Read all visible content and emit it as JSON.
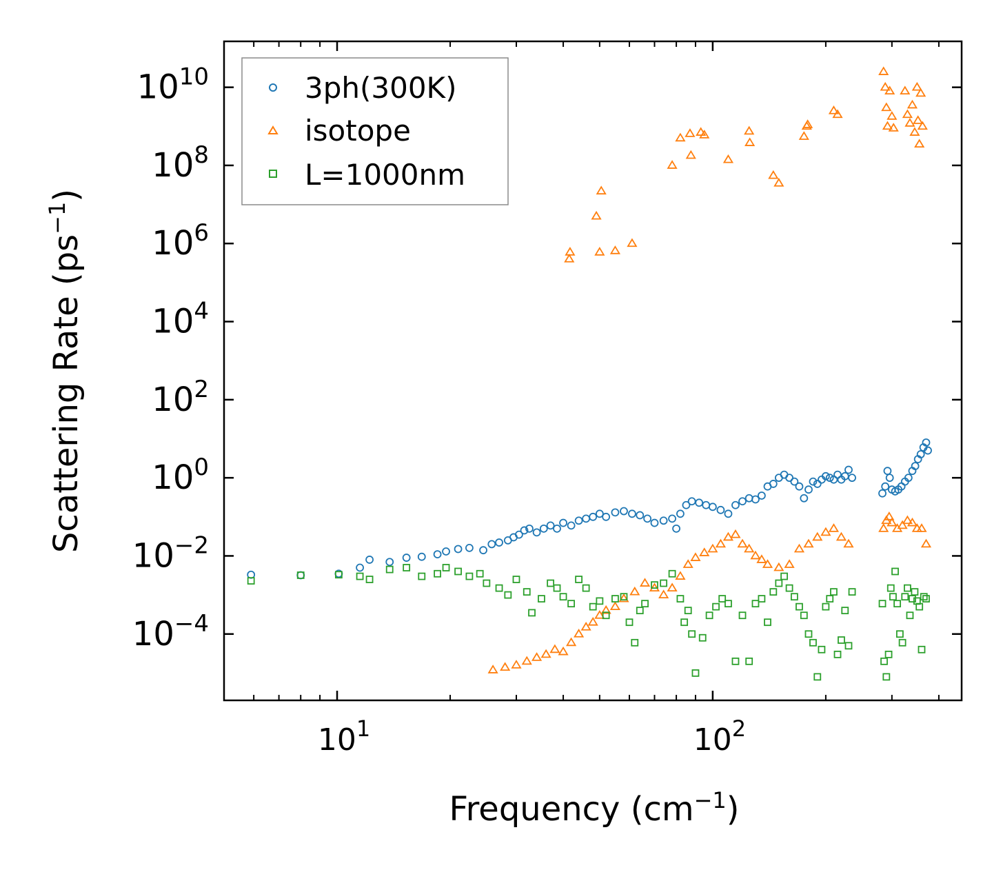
{
  "chart_data": {
    "type": "scatter",
    "title": "",
    "xlabel": {
      "base": "Frequency (cm",
      "sup": "−1",
      "tail": ")"
    },
    "ylabel": {
      "base": "Scattering Rate (ps",
      "sup": "−1",
      "tail": ")"
    },
    "xscale": "log",
    "yscale": "log",
    "xlim": [
      5.0,
      460
    ],
    "ylim": [
      2e-06,
      150000000000.0
    ],
    "x_ticks": [
      {
        "value": 10,
        "base": "10",
        "exp": "1"
      },
      {
        "value": 100,
        "base": "10",
        "exp": "2"
      }
    ],
    "y_ticks": [
      {
        "value": 0.0001,
        "base": "10",
        "exp": "−4"
      },
      {
        "value": 0.01,
        "base": "10",
        "exp": "−2"
      },
      {
        "value": 1,
        "base": "10",
        "exp": "0"
      },
      {
        "value": 100.0,
        "base": "10",
        "exp": "2"
      },
      {
        "value": 10000.0,
        "base": "10",
        "exp": "4"
      },
      {
        "value": 1000000.0,
        "base": "10",
        "exp": "6"
      },
      {
        "value": 100000000.0,
        "base": "10",
        "exp": "8"
      },
      {
        "value": 10000000000.0,
        "base": "10",
        "exp": "10"
      }
    ],
    "legend": {
      "location": "upper-left"
    },
    "series": [
      {
        "name": "3ph(300K)",
        "marker": "circle",
        "color": "#1f77b4",
        "points": [
          [
            5.9,
            0.0033
          ],
          [
            8.0,
            0.0032
          ],
          [
            10.1,
            0.0035
          ],
          [
            11.5,
            0.005
          ],
          [
            12.2,
            0.008
          ],
          [
            13.8,
            0.007
          ],
          [
            15.3,
            0.009
          ],
          [
            16.8,
            0.0095
          ],
          [
            18.5,
            0.011
          ],
          [
            19.5,
            0.013
          ],
          [
            21.0,
            0.015
          ],
          [
            22.5,
            0.016
          ],
          [
            24.5,
            0.014
          ],
          [
            25.8,
            0.02
          ],
          [
            27.0,
            0.022
          ],
          [
            28.5,
            0.025
          ],
          [
            29.5,
            0.03
          ],
          [
            30.5,
            0.035
          ],
          [
            31.5,
            0.045
          ],
          [
            32.5,
            0.05
          ],
          [
            34.0,
            0.04
          ],
          [
            35.5,
            0.05
          ],
          [
            37.0,
            0.06
          ],
          [
            38.5,
            0.05
          ],
          [
            40.0,
            0.07
          ],
          [
            42.0,
            0.06
          ],
          [
            44.0,
            0.08
          ],
          [
            46.0,
            0.09
          ],
          [
            48.0,
            0.1
          ],
          [
            50.0,
            0.12
          ],
          [
            52.0,
            0.1
          ],
          [
            55.0,
            0.13
          ],
          [
            58.0,
            0.14
          ],
          [
            61.0,
            0.12
          ],
          [
            64.0,
            0.11
          ],
          [
            67.0,
            0.09
          ],
          [
            70.0,
            0.07
          ],
          [
            74.0,
            0.08
          ],
          [
            78.0,
            0.09
          ],
          [
            80.0,
            0.05
          ],
          [
            82.0,
            0.12
          ],
          [
            85.0,
            0.2
          ],
          [
            88.0,
            0.25
          ],
          [
            92.0,
            0.23
          ],
          [
            96.0,
            0.2
          ],
          [
            100.0,
            0.18
          ],
          [
            105.0,
            0.15
          ],
          [
            110.0,
            0.12
          ],
          [
            115.0,
            0.2
          ],
          [
            120.0,
            0.25
          ],
          [
            125.0,
            0.3
          ],
          [
            130.0,
            0.28
          ],
          [
            135.0,
            0.35
          ],
          [
            140.0,
            0.6
          ],
          [
            145.0,
            0.7
          ],
          [
            150.0,
            1.0
          ],
          [
            155.0,
            1.2
          ],
          [
            160.0,
            1.0
          ],
          [
            165.0,
            0.8
          ],
          [
            170.0,
            0.6
          ],
          [
            175.0,
            0.3
          ],
          [
            180.0,
            0.5
          ],
          [
            185.0,
            0.8
          ],
          [
            190.0,
            0.7
          ],
          [
            195.0,
            0.9
          ],
          [
            200.0,
            1.1
          ],
          [
            205.0,
            1.0
          ],
          [
            210.0,
            0.9
          ],
          [
            215.0,
            1.2
          ],
          [
            220.0,
            0.9
          ],
          [
            225.0,
            1.1
          ],
          [
            230.0,
            1.6
          ],
          [
            235.0,
            1.0
          ],
          [
            283.0,
            0.4
          ],
          [
            288.0,
            0.6
          ],
          [
            292.0,
            1.5
          ],
          [
            296.0,
            1.0
          ],
          [
            300.0,
            0.5
          ],
          [
            306.0,
            0.45
          ],
          [
            312.0,
            0.5
          ],
          [
            318.0,
            0.6
          ],
          [
            325.0,
            0.8
          ],
          [
            332.0,
            1.0
          ],
          [
            340.0,
            1.5
          ],
          [
            346.0,
            2.0
          ],
          [
            352.0,
            3.0
          ],
          [
            358.0,
            4.0
          ],
          [
            364.0,
            6.0
          ],
          [
            370.0,
            8.0
          ],
          [
            374.0,
            5.0
          ]
        ]
      },
      {
        "name": "isotope",
        "marker": "triangle",
        "color": "#ff7f0e",
        "points": [
          [
            41.5,
            400000
          ],
          [
            41.7,
            600000
          ],
          [
            49.0,
            5000000
          ],
          [
            50.5,
            22000000
          ],
          [
            50.0,
            600000
          ],
          [
            55.0,
            650000
          ],
          [
            61.0,
            1000000
          ],
          [
            78.0,
            100000000
          ],
          [
            82.0,
            500000000
          ],
          [
            87.0,
            650000000
          ],
          [
            87.5,
            180000000
          ],
          [
            93.0,
            700000000
          ],
          [
            95.0,
            600000000
          ],
          [
            110.0,
            140000000
          ],
          [
            125.0,
            750000000
          ],
          [
            125.5,
            380000000
          ],
          [
            145.0,
            55000000
          ],
          [
            150.0,
            35000000
          ],
          [
            175.0,
            550000000
          ],
          [
            178.0,
            1000000000
          ],
          [
            179.0,
            1100000000
          ],
          [
            210.0,
            2500000000
          ],
          [
            215.0,
            2000000000
          ],
          [
            285.0,
            25000000000
          ],
          [
            288.0,
            10000000000
          ],
          [
            290.0,
            3000000000
          ],
          [
            292.0,
            1000000000
          ],
          [
            296.0,
            8000000000
          ],
          [
            300.0,
            1800000000
          ],
          [
            303.0,
            900000000
          ],
          [
            325.0,
            8000000000
          ],
          [
            330.0,
            2000000000
          ],
          [
            335.0,
            1200000000
          ],
          [
            340.0,
            3500000000
          ],
          [
            345.0,
            700000000
          ],
          [
            350.0,
            10000000000
          ],
          [
            352.0,
            1400000000
          ],
          [
            355.0,
            350000000
          ],
          [
            358.0,
            7000000000
          ],
          [
            362.0,
            1000000000
          ],
          [
            26.0,
            1.2e-05
          ],
          [
            28.0,
            1.4e-05
          ],
          [
            30.0,
            1.6e-05
          ],
          [
            32.0,
            2e-05
          ],
          [
            34.0,
            2.5e-05
          ],
          [
            36.0,
            3e-05
          ],
          [
            38.0,
            4e-05
          ],
          [
            40.0,
            3.5e-05
          ],
          [
            42.0,
            6e-05
          ],
          [
            44.0,
            0.0001
          ],
          [
            46.0,
            0.00015
          ],
          [
            48.0,
            0.0002
          ],
          [
            50.0,
            0.0003
          ],
          [
            52.0,
            0.0004
          ],
          [
            55.0,
            0.0005
          ],
          [
            58.0,
            0.0008
          ],
          [
            62.0,
            0.0012
          ],
          [
            66.0,
            0.002
          ],
          [
            70.0,
            0.0015
          ],
          [
            74.0,
            0.001
          ],
          [
            78.0,
            0.0015
          ],
          [
            82.0,
            0.003
          ],
          [
            86.0,
            0.006
          ],
          [
            90.0,
            0.009
          ],
          [
            95.0,
            0.012
          ],
          [
            100.0,
            0.015
          ],
          [
            105.0,
            0.02
          ],
          [
            110.0,
            0.03
          ],
          [
            115.0,
            0.035
          ],
          [
            120.0,
            0.02
          ],
          [
            125.0,
            0.015
          ],
          [
            130.0,
            0.01
          ],
          [
            135.0,
            0.008
          ],
          [
            140.0,
            0.006
          ],
          [
            150.0,
            0.005
          ],
          [
            160.0,
            0.006
          ],
          [
            170.0,
            0.015
          ],
          [
            180.0,
            0.02
          ],
          [
            190.0,
            0.03
          ],
          [
            200.0,
            0.04
          ],
          [
            210.0,
            0.05
          ],
          [
            220.0,
            0.03
          ],
          [
            230.0,
            0.02
          ],
          [
            285.0,
            0.05
          ],
          [
            290.0,
            0.08
          ],
          [
            295.0,
            0.1
          ],
          [
            300.0,
            0.07
          ],
          [
            310.0,
            0.05
          ],
          [
            320.0,
            0.06
          ],
          [
            330.0,
            0.08
          ],
          [
            340.0,
            0.07
          ],
          [
            350.0,
            0.05
          ],
          [
            360.0,
            0.05
          ],
          [
            370.0,
            0.02
          ]
        ]
      },
      {
        "name": "L=1000nm",
        "marker": "square",
        "color": "#2ca02c",
        "points": [
          [
            5.9,
            0.0023
          ],
          [
            8.0,
            0.0032
          ],
          [
            10.1,
            0.0033
          ],
          [
            11.5,
            0.003
          ],
          [
            12.2,
            0.0025
          ],
          [
            13.8,
            0.0045
          ],
          [
            15.3,
            0.005
          ],
          [
            16.8,
            0.003
          ],
          [
            18.5,
            0.0035
          ],
          [
            19.5,
            0.005
          ],
          [
            21.0,
            0.004
          ],
          [
            22.5,
            0.003
          ],
          [
            24.0,
            0.0035
          ],
          [
            25.0,
            0.002
          ],
          [
            27.0,
            0.0015
          ],
          [
            28.5,
            0.001
          ],
          [
            30.0,
            0.0025
          ],
          [
            32.0,
            0.0012
          ],
          [
            33.0,
            0.00035
          ],
          [
            35.0,
            0.0008
          ],
          [
            37.0,
            0.002
          ],
          [
            38.5,
            0.0015
          ],
          [
            40.0,
            0.0009
          ],
          [
            42.0,
            0.0006
          ],
          [
            44.0,
            0.0025
          ],
          [
            46.0,
            0.0015
          ],
          [
            48.0,
            0.0005
          ],
          [
            50.0,
            0.0007
          ],
          [
            52.0,
            0.0003
          ],
          [
            55.0,
            0.0008
          ],
          [
            58.0,
            0.0009
          ],
          [
            60.0,
            0.0002
          ],
          [
            62.0,
            6e-05
          ],
          [
            64.0,
            0.0004
          ],
          [
            66.0,
            0.0006
          ],
          [
            70.0,
            0.0018
          ],
          [
            74.0,
            0.002
          ],
          [
            78.0,
            0.0035
          ],
          [
            82.0,
            0.0008
          ],
          [
            84.0,
            0.0002
          ],
          [
            86.0,
            0.0004
          ],
          [
            88.0,
            0.0001
          ],
          [
            90.0,
            1e-05
          ],
          [
            94.0,
            8e-05
          ],
          [
            98.0,
            0.0003
          ],
          [
            102.0,
            0.0005
          ],
          [
            106.0,
            0.0008
          ],
          [
            110.0,
            0.0006
          ],
          [
            115.0,
            2e-05
          ],
          [
            120.0,
            0.0003
          ],
          [
            125.0,
            2e-05
          ],
          [
            130.0,
            0.0006
          ],
          [
            135.0,
            0.0008
          ],
          [
            140.0,
            0.0002
          ],
          [
            145.0,
            0.0012
          ],
          [
            150.0,
            0.002
          ],
          [
            155.0,
            0.003
          ],
          [
            160.0,
            0.0015
          ],
          [
            165.0,
            0.0009
          ],
          [
            170.0,
            0.0005
          ],
          [
            175.0,
            0.0003
          ],
          [
            180.0,
            0.0001
          ],
          [
            185.0,
            6e-05
          ],
          [
            190.0,
            8e-06
          ],
          [
            195.0,
            4e-05
          ],
          [
            200.0,
            0.0005
          ],
          [
            205.0,
            0.0008
          ],
          [
            210.0,
            0.0012
          ],
          [
            215.0,
            3e-05
          ],
          [
            220.0,
            7e-05
          ],
          [
            225.0,
            0.0004
          ],
          [
            230.0,
            5e-05
          ],
          [
            235.0,
            0.0012
          ],
          [
            283.0,
            0.0006
          ],
          [
            286.0,
            2e-05
          ],
          [
            290.0,
            8e-06
          ],
          [
            294.0,
            3e-05
          ],
          [
            298.0,
            0.0015
          ],
          [
            302.0,
            0.0009
          ],
          [
            306.0,
            0.004
          ],
          [
            310.0,
            0.0006
          ],
          [
            315.0,
            0.0001
          ],
          [
            320.0,
            6e-05
          ],
          [
            325.0,
            0.0009
          ],
          [
            330.0,
            0.0015
          ],
          [
            335.0,
            0.0003
          ],
          [
            340.0,
            0.0008
          ],
          [
            345.0,
            0.0012
          ],
          [
            350.0,
            0.0007
          ],
          [
            355.0,
            0.0005
          ],
          [
            360.0,
            4e-05
          ],
          [
            365.0,
            0.0009
          ],
          [
            370.0,
            0.0008
          ]
        ]
      }
    ]
  }
}
